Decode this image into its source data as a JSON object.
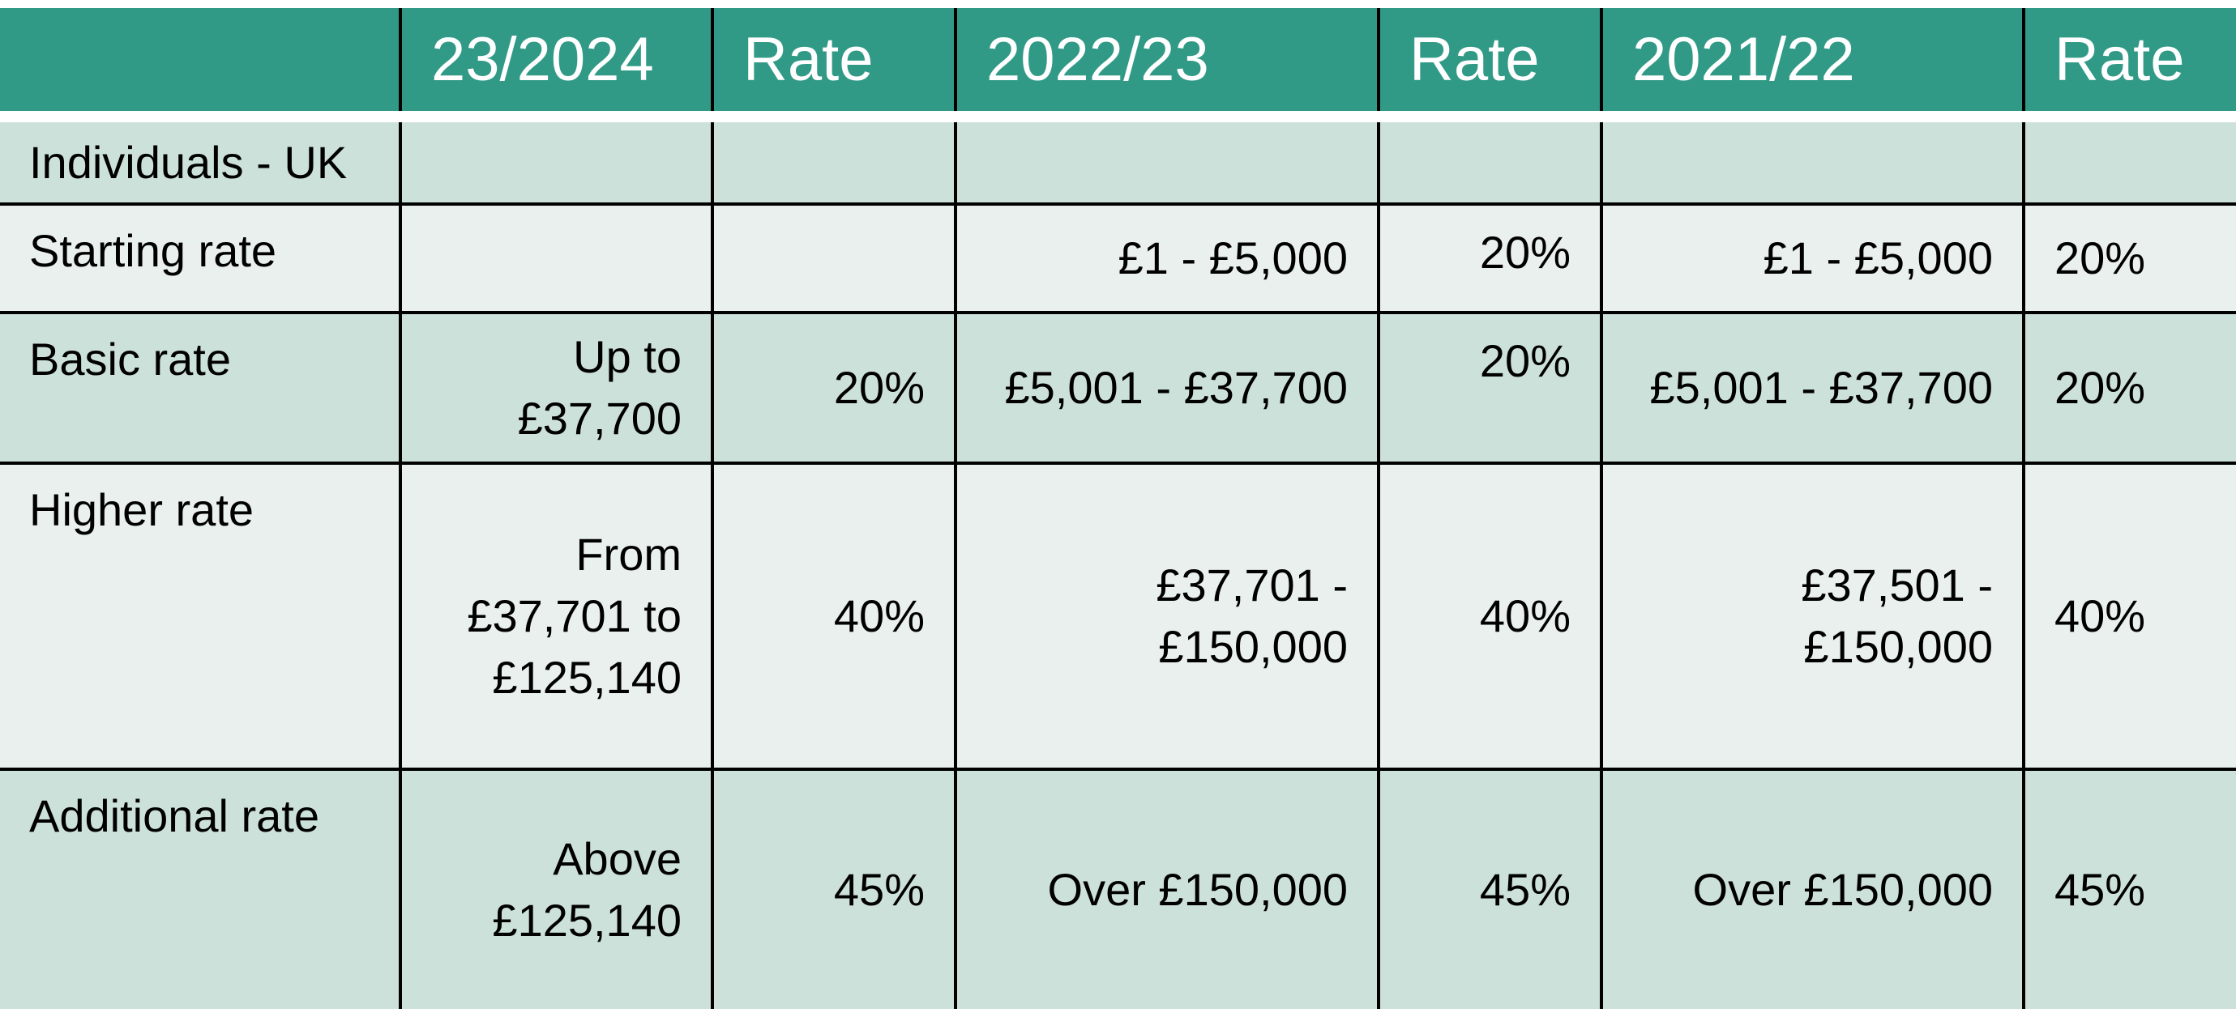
{
  "table": {
    "headers": [
      "",
      "23/2024",
      "Rate",
      "2022/23",
      "Rate",
      "2021/22",
      "Rate"
    ],
    "section_label": "Individuals - UK",
    "rows": [
      {
        "label": "Starting rate",
        "y2324_band": "",
        "y2324_rate": "",
        "y2223_band": "£1 - £5,000",
        "y2223_rate": "20%",
        "y2122_band": "£1 - £5,000",
        "y2122_rate": "20%"
      },
      {
        "label": "Basic rate",
        "y2324_band_lines": [
          "Up to",
          "£37,700"
        ],
        "y2324_rate": "20%",
        "y2223_band": "£5,001 - £37,700",
        "y2223_rate": "20%",
        "y2122_band": "£5,001 - £37,700",
        "y2122_rate": "20%"
      },
      {
        "label": "Higher rate",
        "y2324_band_lines": [
          "From",
          "£37,701 to",
          "£125,140"
        ],
        "y2324_rate": "40%",
        "y2223_band_lines": [
          "£37,701 -",
          "£150,000"
        ],
        "y2223_rate": "40%",
        "y2122_band_lines": [
          "£37,501 -",
          "£150,000"
        ],
        "y2122_rate": "40%"
      },
      {
        "label": "Additional rate",
        "y2324_band_lines": [
          "Above",
          "£125,140"
        ],
        "y2324_rate": "45%",
        "y2223_band": "Over £150,000",
        "y2223_rate": "45%",
        "y2122_band": "Over £150,000",
        "y2122_rate": "45%"
      }
    ]
  },
  "colors": {
    "header_bg": "#319a86",
    "header_text": "#ffffff",
    "row_dark": "#cde1db",
    "row_light": "#e9f0ee",
    "grid": "#000000"
  }
}
